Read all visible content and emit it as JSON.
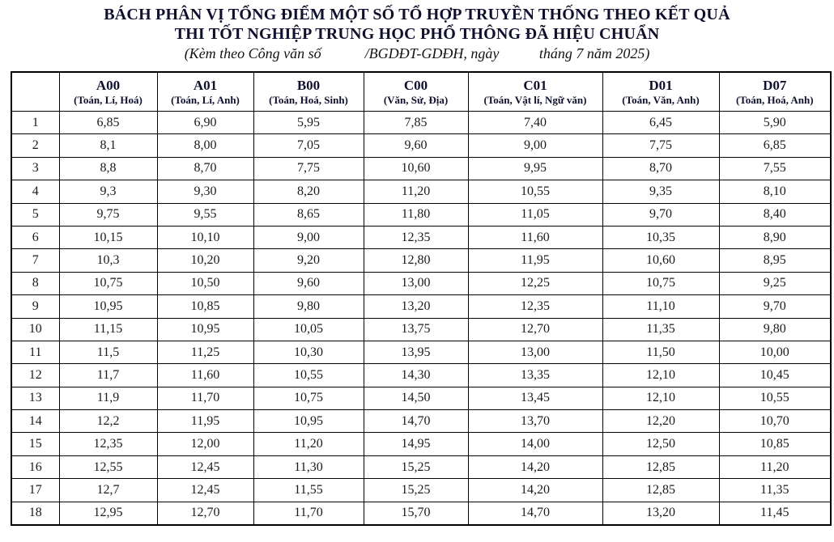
{
  "title": {
    "line1": "BÁCH PHÂN VỊ TỔNG ĐIỂM MỘT SỐ TỔ HỢP TRUYỀN THỐNG THEO KẾT QUẢ",
    "line2": "THI TỐT NGHIỆP TRUNG HỌC PHỔ THÔNG ĐÃ HIỆU CHUẨN",
    "subtitle": "(Kèm theo Công văn số            /BGDĐT-GDĐH, ngày           tháng 7 năm 2025)"
  },
  "colors": {
    "title_text": "#10102e",
    "header_text": "#10102e",
    "body_text": "#1b1b1b",
    "border": "#000000",
    "background": "#ffffff"
  },
  "table": {
    "columns": [
      {
        "code": "",
        "subjects": ""
      },
      {
        "code": "A00",
        "subjects": "(Toán, Lí, Hoá)"
      },
      {
        "code": "A01",
        "subjects": "(Toán, Lí, Anh)"
      },
      {
        "code": "B00",
        "subjects": "(Toán, Hoá, Sinh)"
      },
      {
        "code": "C00",
        "subjects": "(Văn, Sử, Địa)"
      },
      {
        "code": "C01",
        "subjects": "(Toán, Vật lí, Ngữ văn)"
      },
      {
        "code": "D01",
        "subjects": "(Toán, Văn, Anh)"
      },
      {
        "code": "D07",
        "subjects": "(Toán, Hoá, Anh)"
      }
    ],
    "rows": [
      {
        "percentile": "1",
        "values": [
          "6,85",
          "6,90",
          "5,95",
          "7,85",
          "7,40",
          "6,45",
          "5,90"
        ]
      },
      {
        "percentile": "2",
        "values": [
          "8,1",
          "8,00",
          "7,05",
          "9,60",
          "9,00",
          "7,75",
          "6,85"
        ]
      },
      {
        "percentile": "3",
        "values": [
          "8,8",
          "8,70",
          "7,75",
          "10,60",
          "9,95",
          "8,70",
          "7,55"
        ]
      },
      {
        "percentile": "4",
        "values": [
          "9,3",
          "9,30",
          "8,20",
          "11,20",
          "10,55",
          "9,35",
          "8,10"
        ]
      },
      {
        "percentile": "5",
        "values": [
          "9,75",
          "9,55",
          "8,65",
          "11,80",
          "11,05",
          "9,70",
          "8,40"
        ]
      },
      {
        "percentile": "6",
        "values": [
          "10,15",
          "10,10",
          "9,00",
          "12,35",
          "11,60",
          "10,35",
          "8,90"
        ]
      },
      {
        "percentile": "7",
        "values": [
          "10,3",
          "10,20",
          "9,20",
          "12,80",
          "11,95",
          "10,60",
          "8,95"
        ]
      },
      {
        "percentile": "8",
        "values": [
          "10,75",
          "10,50",
          "9,60",
          "13,00",
          "12,25",
          "10,75",
          "9,25"
        ]
      },
      {
        "percentile": "9",
        "values": [
          "10,95",
          "10,85",
          "9,80",
          "13,20",
          "12,35",
          "11,10",
          "9,70"
        ]
      },
      {
        "percentile": "10",
        "values": [
          "11,15",
          "10,95",
          "10,05",
          "13,75",
          "12,70",
          "11,35",
          "9,80"
        ]
      },
      {
        "percentile": "11",
        "values": [
          "11,5",
          "11,25",
          "10,30",
          "13,95",
          "13,00",
          "11,50",
          "10,00"
        ]
      },
      {
        "percentile": "12",
        "values": [
          "11,7",
          "11,60",
          "10,55",
          "14,30",
          "13,35",
          "12,10",
          "10,45"
        ]
      },
      {
        "percentile": "13",
        "values": [
          "11,9",
          "11,70",
          "10,75",
          "14,50",
          "13,45",
          "12,10",
          "10,55"
        ]
      },
      {
        "percentile": "14",
        "values": [
          "12,2",
          "11,95",
          "10,95",
          "14,70",
          "13,70",
          "12,20",
          "10,70"
        ]
      },
      {
        "percentile": "15",
        "values": [
          "12,35",
          "12,00",
          "11,20",
          "14,95",
          "14,00",
          "12,50",
          "10,85"
        ]
      },
      {
        "percentile": "16",
        "values": [
          "12,55",
          "12,45",
          "11,30",
          "15,25",
          "14,20",
          "12,85",
          "11,20"
        ]
      },
      {
        "percentile": "17",
        "values": [
          "12,7",
          "12,45",
          "11,55",
          "15,25",
          "14,20",
          "12,85",
          "11,35"
        ]
      },
      {
        "percentile": "18",
        "values": [
          "12,95",
          "12,70",
          "11,70",
          "15,70",
          "14,70",
          "13,20",
          "11,45"
        ]
      }
    ]
  }
}
